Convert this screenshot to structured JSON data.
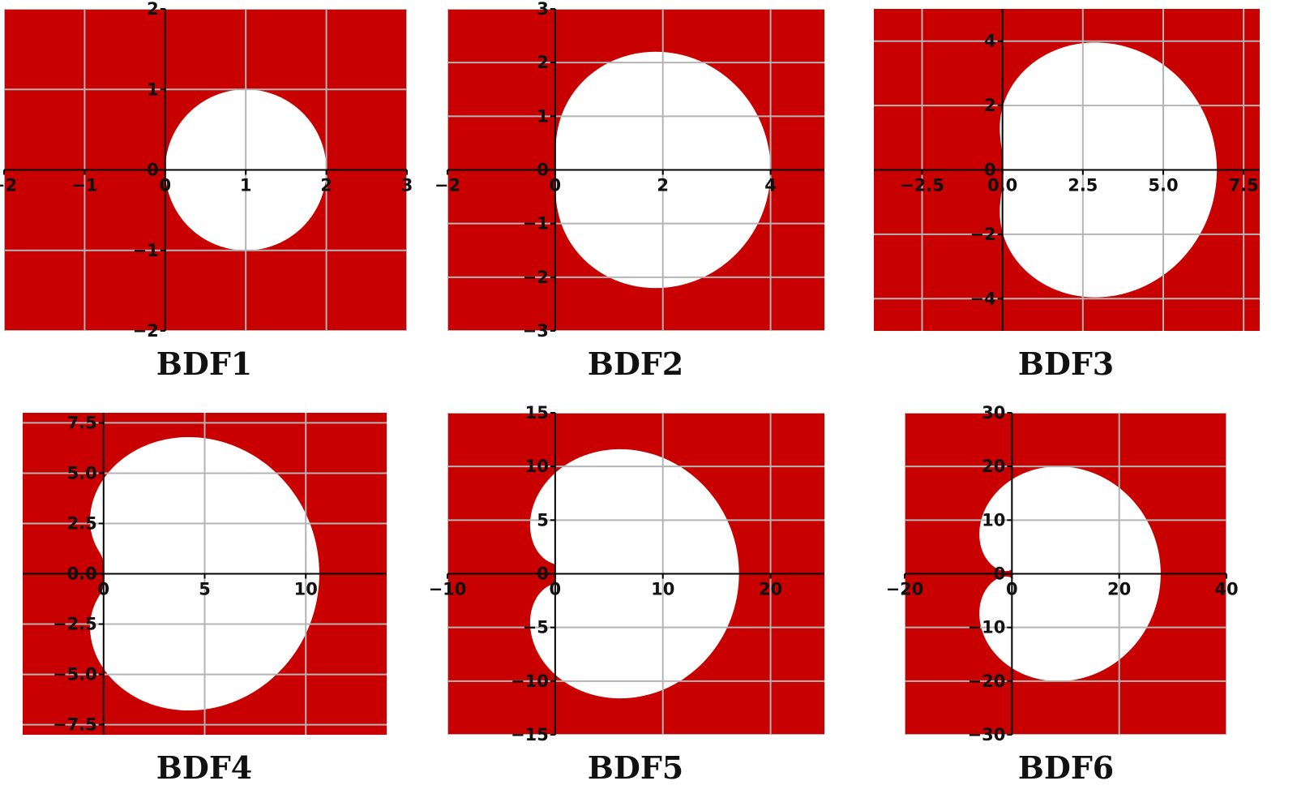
{
  "figure": {
    "colors": {
      "unstable_region": "#c80000",
      "stable_region": "#ffffff",
      "grid": "#b4b4b4",
      "axis": "#000000"
    }
  },
  "chart_data": [
    {
      "type": "area",
      "title": "BDF1",
      "order": 1,
      "xlim": [
        -2,
        3
      ],
      "ylim": [
        -2,
        2
      ],
      "xticks": [
        -2,
        -1,
        0,
        1,
        2,
        3
      ],
      "xtick_labels": [
        "−2",
        "−1",
        "0",
        "1",
        "2",
        "3"
      ],
      "yticks": [
        -2,
        -1,
        0,
        1,
        2
      ],
      "ytick_labels": [
        "−2",
        "−1",
        "0",
        "1",
        "2"
      ],
      "boundary": {
        "center": [
          1,
          0
        ],
        "radius": 1,
        "x_extent": [
          0,
          2
        ],
        "y_extent": [
          -1,
          1
        ]
      },
      "grid": true
    },
    {
      "type": "area",
      "title": "BDF2",
      "order": 2,
      "xlim": [
        -2,
        5
      ],
      "ylim": [
        -3,
        3
      ],
      "xticks": [
        -2,
        0,
        2,
        4
      ],
      "xtick_labels": [
        "−2",
        "0",
        "2",
        "4"
      ],
      "yticks": [
        -3,
        -2,
        -1,
        0,
        1,
        2,
        3
      ],
      "ytick_labels": [
        "−3",
        "−2",
        "−1",
        "0",
        "1",
        "2",
        "3"
      ],
      "boundary": {
        "x_extent": [
          0,
          4
        ],
        "y_extent": [
          -2.2,
          2.2
        ]
      },
      "grid": true
    },
    {
      "type": "area",
      "title": "BDF3",
      "order": 3,
      "xlim": [
        -4,
        8
      ],
      "ylim": [
        -5,
        5
      ],
      "xticks": [
        -2.5,
        0,
        2.5,
        5,
        7.5
      ],
      "xtick_labels": [
        "−2.5",
        "0.0",
        "2.5",
        "5.0",
        "7.5"
      ],
      "yticks": [
        -4,
        -2,
        0,
        2,
        4
      ],
      "ytick_labels": [
        "−4",
        "−2",
        "0",
        "2",
        "4"
      ],
      "boundary": {
        "x_extent": [
          -0.1,
          6.7
        ],
        "y_extent": [
          -4,
          4
        ]
      },
      "grid": true
    },
    {
      "type": "area",
      "title": "BDF4",
      "order": 4,
      "xlim": [
        -4,
        14
      ],
      "ylim": [
        -8,
        8
      ],
      "xticks": [
        0,
        5,
        10
      ],
      "xtick_labels": [
        "0",
        "5",
        "10"
      ],
      "yticks": [
        -7.5,
        -5,
        -2.5,
        0,
        2.5,
        5,
        7.5
      ],
      "ytick_labels": [
        "−7.5",
        "−5.0",
        "−2.5",
        "0.0",
        "2.5",
        "5.0",
        "7.5"
      ],
      "boundary": {
        "x_extent": [
          -0.7,
          10.6
        ],
        "y_extent": [
          -6.8,
          6.8
        ]
      },
      "grid": true
    },
    {
      "type": "area",
      "title": "BDF5",
      "order": 5,
      "xlim": [
        -10,
        25
      ],
      "ylim": [
        -15,
        15
      ],
      "xticks": [
        -10,
        0,
        10,
        20
      ],
      "xtick_labels": [
        "−10",
        "0",
        "10",
        "20"
      ],
      "yticks": [
        -15,
        -10,
        -5,
        0,
        5,
        10,
        15
      ],
      "ytick_labels": [
        "−15",
        "−10",
        "−5",
        "0",
        "5",
        "10",
        "15"
      ],
      "boundary": {
        "x_extent": [
          -2.2,
          17
        ],
        "y_extent": [
          -11.5,
          11.5
        ]
      },
      "grid": true
    },
    {
      "type": "area",
      "title": "BDF6",
      "order": 6,
      "xlim": [
        -20,
        40
      ],
      "ylim": [
        -30,
        30
      ],
      "xticks": [
        -20,
        0,
        20,
        40
      ],
      "xtick_labels": [
        "−20",
        "0",
        "20",
        "40"
      ],
      "yticks": [
        -30,
        -20,
        -10,
        0,
        10,
        20,
        30
      ],
      "ytick_labels": [
        "−30",
        "−20",
        "−10",
        "0",
        "10",
        "20",
        "30"
      ],
      "boundary": {
        "x_extent": [
          -6,
          27.5
        ],
        "y_extent": [
          -20,
          20
        ]
      },
      "grid": true
    }
  ]
}
